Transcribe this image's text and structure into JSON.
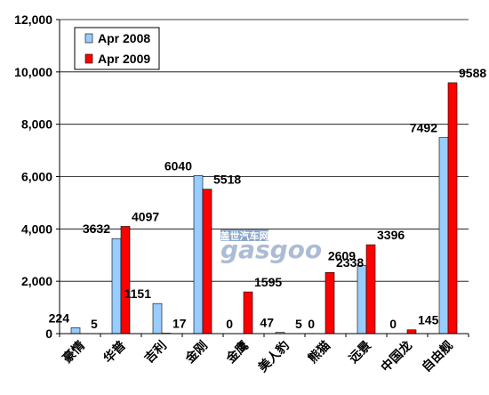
{
  "chart_data": {
    "type": "bar",
    "categories": [
      "豪情",
      "华普",
      "吉利",
      "金刚",
      "金鹰",
      "美人豹",
      "熊猫",
      "远景",
      "中国龙",
      "自由舰"
    ],
    "series": [
      {
        "name": "Apr 2008",
        "values": [
          224,
          3632,
          1151,
          6040,
          0,
          47,
          0,
          2609,
          0,
          7492
        ],
        "color": "#99ccff"
      },
      {
        "name": "Apr 2009",
        "values": [
          5,
          4097,
          17,
          5518,
          1595,
          5,
          2338,
          3396,
          145,
          9588
        ],
        "color": "#ff0000"
      }
    ],
    "data_labels": [
      [
        "224",
        "3632",
        "1151",
        "6040",
        "0",
        "47",
        "0",
        "2609",
        "0",
        "7492"
      ],
      [
        "5",
        "4097",
        "17",
        "5518",
        "1595",
        "5",
        "2338",
        "3396",
        "145",
        "9588"
      ]
    ],
    "y_ticks": [
      "0",
      "2,000",
      "4,000",
      "6,000",
      "8,000",
      "10,000",
      "12,000"
    ],
    "ylim": [
      0,
      12000
    ],
    "grid": true,
    "legend_position": "top-left",
    "title": "",
    "xlabel": "",
    "ylabel": ""
  },
  "watermark": {
    "text": "gasgoo",
    "chinese": "盖世汽车网"
  }
}
